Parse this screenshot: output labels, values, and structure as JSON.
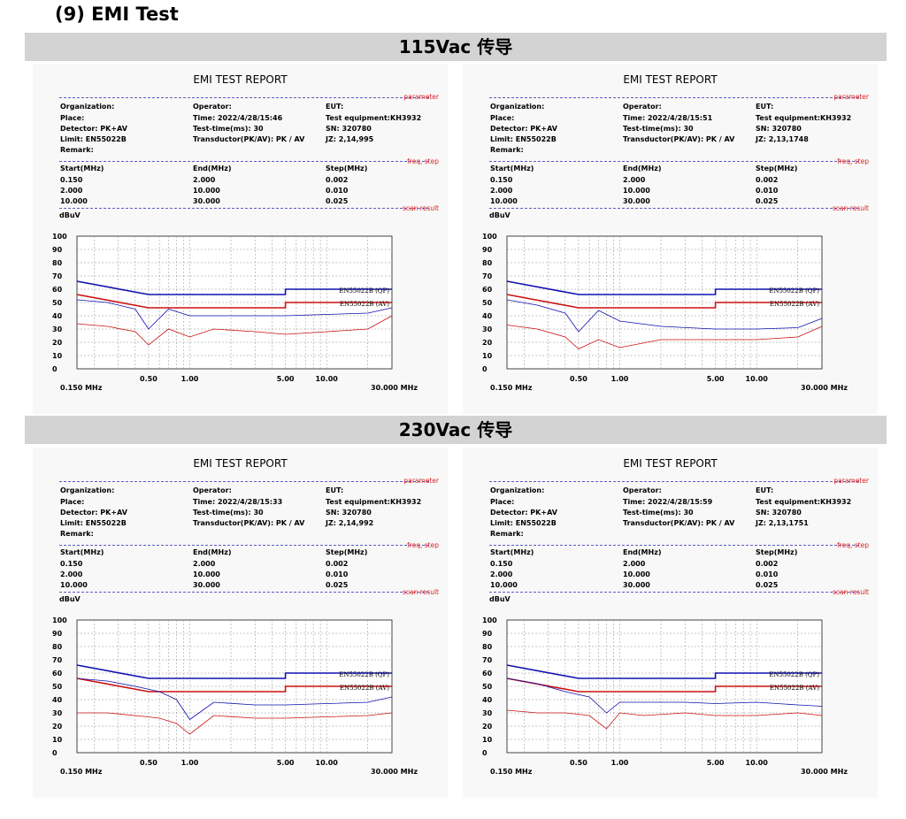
{
  "page_title": "(9) EMI Test",
  "bands": [
    "115Vac 传导",
    "230Vac 传导"
  ],
  "colors": {
    "qp": "#1010b0",
    "av": "#cc1111",
    "band": "#d3d3d3",
    "grid": "#909090"
  },
  "reports": [
    {
      "title": "EMI TEST REPORT",
      "param_label": "parameter",
      "freq_label": "freq, step",
      "scan_label": "scan result",
      "col1": [
        "Organization:",
        "Place:",
        "Detector:  PK+AV",
        "Limit:  EN55022B",
        "Remark:"
      ],
      "col2": [
        "Operator:",
        "Time:  2022/4/28/15:46",
        "Test-time(ms):  30",
        "Transductor(PK/AV): PK / AV"
      ],
      "col3": [
        "EUT:",
        "Test equipment:KH3932",
        "SN:  320780",
        "JZ:  2,14,995"
      ],
      "step_header": [
        "Start(MHz)",
        "End(MHz)",
        "Step(MHz)"
      ],
      "step_rows": [
        [
          "0.150",
          "2.000",
          "0.002"
        ],
        [
          "2.000",
          "10.000",
          "0.010"
        ],
        [
          "10.000",
          "30.000",
          "0.025"
        ]
      ],
      "unit": "dBuV",
      "freq_start": "0.150 MHz",
      "freq_end": "30.000 MHz",
      "qp_label": "EN55022B (QP)",
      "av_label": "EN55022B (AV)"
    },
    {
      "title": "EMI TEST REPORT",
      "param_label": "parameter",
      "freq_label": "freq, step",
      "scan_label": "scan result",
      "col1": [
        "Organization:",
        "Place:",
        "Detector:  PK+AV",
        "Limit:  EN55022B",
        "Remark:"
      ],
      "col2": [
        "Operator:",
        "Time:  2022/4/28/15:51",
        "Test-time(ms):  30",
        "Transductor(PK/AV): PK / AV"
      ],
      "col3": [
        "EUT:",
        "Test equipment:KH3932",
        "SN:  320780",
        "JZ:  2,13,1748"
      ],
      "step_header": [
        "Start(MHz)",
        "End(MHz)",
        "Step(MHz)"
      ],
      "step_rows": [
        [
          "0.150",
          "2.000",
          "0.002"
        ],
        [
          "2.000",
          "10.000",
          "0.010"
        ],
        [
          "10.000",
          "30.000",
          "0.025"
        ]
      ],
      "unit": "dBuV",
      "freq_start": "0.150 MHz",
      "freq_end": "30.000 MHz",
      "qp_label": "EN55022B (QP)",
      "av_label": "EN55022B (AV)"
    },
    {
      "title": "EMI TEST REPORT",
      "param_label": "parameter",
      "freq_label": "freq, step",
      "scan_label": "scan result",
      "col1": [
        "Organization:",
        "Place:",
        "Detector:  PK+AV",
        "Limit:  EN55022B",
        "Remark:"
      ],
      "col2": [
        "Operator:",
        "Time:  2022/4/28/15:33",
        "Test-time(ms):  30",
        "Transductor(PK/AV): PK / AV"
      ],
      "col3": [
        "EUT:",
        "Test equipment:KH3932",
        "SN:  320780",
        "JZ:  2,14,992"
      ],
      "step_header": [
        "Start(MHz)",
        "End(MHz)",
        "Step(MHz)"
      ],
      "step_rows": [
        [
          "0.150",
          "2.000",
          "0.002"
        ],
        [
          "2.000",
          "10.000",
          "0.010"
        ],
        [
          "10.000",
          "30.000",
          "0.025"
        ]
      ],
      "unit": "dBuV",
      "freq_start": "0.150 MHz",
      "freq_end": "30.000 MHz",
      "qp_label": "EN55022B (QP)",
      "av_label": "EN55022B (AV)"
    },
    {
      "title": "EMI TEST REPORT",
      "param_label": "parameter",
      "freq_label": "freq, step",
      "scan_label": "scan result",
      "col1": [
        "Organization:",
        "Place:",
        "Detector:  PK+AV",
        "Limit:  EN55022B",
        "Remark:"
      ],
      "col2": [
        "Operator:",
        "Time:  2022/4/28/15:59",
        "Test-time(ms):  30",
        "Transductor(PK/AV): PK / AV"
      ],
      "col3": [
        "EUT:",
        "Test equipment:KH3932",
        "SN:  320780",
        "JZ:  2,13,1751"
      ],
      "step_header": [
        "Start(MHz)",
        "End(MHz)",
        "Step(MHz)"
      ],
      "step_rows": [
        [
          "0.150",
          "2.000",
          "0.002"
        ],
        [
          "2.000",
          "10.000",
          "0.010"
        ],
        [
          "10.000",
          "30.000",
          "0.025"
        ]
      ],
      "unit": "dBuV",
      "freq_start": "0.150 MHz",
      "freq_end": "30.000 MHz",
      "qp_label": "EN55022B (QP)",
      "av_label": "EN55022B (AV)"
    }
  ],
  "chart_data": [
    {
      "type": "line",
      "x_scale": "log",
      "xlim": [
        0.15,
        30
      ],
      "ylim": [
        0,
        100
      ],
      "grid": true,
      "yticks": [
        0,
        10,
        20,
        30,
        40,
        50,
        60,
        70,
        80,
        90,
        100
      ],
      "xticks": [
        0.5,
        1,
        5,
        10
      ],
      "xtick_labels": [
        "0.50",
        "1.00",
        "5.00",
        "10.00"
      ],
      "series": [
        {
          "name": "EN55022B (QP)",
          "x": [
            0.15,
            0.5,
            0.5,
            5,
            5,
            30
          ],
          "y": [
            66,
            56,
            56,
            56,
            60,
            60
          ]
        },
        {
          "name": "EN55022B (AV)",
          "x": [
            0.15,
            0.5,
            0.5,
            5,
            5,
            30
          ],
          "y": [
            56,
            46,
            46,
            46,
            50,
            50
          ]
        },
        {
          "x": [
            0.15,
            0.25,
            0.4,
            0.5,
            0.7,
            1,
            1.5,
            3,
            5,
            10,
            20,
            30
          ],
          "y": [
            52,
            50,
            45,
            30,
            45,
            40,
            40,
            40,
            40,
            41,
            42,
            46
          ]
        },
        {
          "x": [
            0.15,
            0.25,
            0.4,
            0.5,
            0.7,
            1,
            1.5,
            3,
            5,
            10,
            20,
            30
          ],
          "y": [
            34,
            32,
            28,
            18,
            30,
            24,
            30,
            28,
            26,
            28,
            30,
            40
          ]
        }
      ]
    },
    {
      "type": "line",
      "x_scale": "log",
      "xlim": [
        0.15,
        30
      ],
      "ylim": [
        0,
        100
      ],
      "grid": true,
      "yticks": [
        0,
        10,
        20,
        30,
        40,
        50,
        60,
        70,
        80,
        90,
        100
      ],
      "xticks": [
        0.5,
        1,
        5,
        10
      ],
      "xtick_labels": [
        "0.50",
        "1.00",
        "5.00",
        "10.00"
      ],
      "series": [
        {
          "name": "EN55022B (QP)",
          "x": [
            0.15,
            0.5,
            0.5,
            5,
            5,
            30
          ],
          "y": [
            66,
            56,
            56,
            56,
            60,
            60
          ]
        },
        {
          "name": "EN55022B (AV)",
          "x": [
            0.15,
            0.5,
            0.5,
            5,
            5,
            30
          ],
          "y": [
            56,
            46,
            46,
            46,
            50,
            50
          ]
        },
        {
          "x": [
            0.15,
            0.25,
            0.4,
            0.5,
            0.7,
            1,
            2,
            5,
            10,
            20,
            30
          ],
          "y": [
            52,
            48,
            42,
            28,
            44,
            36,
            32,
            30,
            30,
            31,
            38
          ]
        },
        {
          "x": [
            0.15,
            0.25,
            0.4,
            0.5,
            0.7,
            1,
            2,
            5,
            10,
            20,
            30
          ],
          "y": [
            33,
            30,
            24,
            15,
            22,
            16,
            22,
            22,
            22,
            24,
            32
          ]
        }
      ]
    },
    {
      "type": "line",
      "x_scale": "log",
      "xlim": [
        0.15,
        30
      ],
      "ylim": [
        0,
        100
      ],
      "grid": true,
      "yticks": [
        0,
        10,
        20,
        30,
        40,
        50,
        60,
        70,
        80,
        90,
        100
      ],
      "xticks": [
        0.5,
        1,
        5,
        10
      ],
      "xtick_labels": [
        "0.50",
        "1.00",
        "5.00",
        "10.00"
      ],
      "series": [
        {
          "name": "EN55022B (QP)",
          "x": [
            0.15,
            0.5,
            0.5,
            5,
            5,
            30
          ],
          "y": [
            66,
            56,
            56,
            56,
            60,
            60
          ]
        },
        {
          "name": "EN55022B (AV)",
          "x": [
            0.15,
            0.5,
            0.5,
            5,
            5,
            30
          ],
          "y": [
            56,
            46,
            46,
            46,
            50,
            50
          ]
        },
        {
          "x": [
            0.15,
            0.25,
            0.4,
            0.6,
            0.8,
            1,
            1.5,
            3,
            5,
            10,
            20,
            30
          ],
          "y": [
            56,
            54,
            50,
            46,
            40,
            25,
            38,
            36,
            36,
            37,
            38,
            42
          ]
        },
        {
          "x": [
            0.15,
            0.25,
            0.4,
            0.6,
            0.8,
            1,
            1.5,
            3,
            5,
            10,
            20,
            30
          ],
          "y": [
            30,
            30,
            28,
            26,
            22,
            14,
            28,
            26,
            26,
            27,
            28,
            30
          ]
        }
      ]
    },
    {
      "type": "line",
      "x_scale": "log",
      "xlim": [
        0.15,
        30
      ],
      "ylim": [
        0,
        100
      ],
      "grid": true,
      "yticks": [
        0,
        10,
        20,
        30,
        40,
        50,
        60,
        70,
        80,
        90,
        100
      ],
      "xticks": [
        0.5,
        1,
        5,
        10
      ],
      "xtick_labels": [
        "0.50",
        "1.00",
        "5.00",
        "10.00"
      ],
      "series": [
        {
          "name": "EN55022B (QP)",
          "x": [
            0.15,
            0.5,
            0.5,
            5,
            5,
            30
          ],
          "y": [
            66,
            56,
            56,
            56,
            60,
            60
          ]
        },
        {
          "name": "EN55022B (AV)",
          "x": [
            0.15,
            0.5,
            0.5,
            5,
            5,
            30
          ],
          "y": [
            56,
            46,
            46,
            46,
            50,
            50
          ]
        },
        {
          "x": [
            0.15,
            0.25,
            0.4,
            0.6,
            0.8,
            1,
            1.5,
            3,
            5,
            10,
            20,
            30
          ],
          "y": [
            56,
            52,
            46,
            42,
            30,
            38,
            38,
            38,
            37,
            38,
            36,
            35
          ]
        },
        {
          "x": [
            0.15,
            0.25,
            0.4,
            0.6,
            0.8,
            1,
            1.5,
            3,
            5,
            10,
            20,
            30
          ],
          "y": [
            32,
            30,
            30,
            28,
            18,
            30,
            28,
            30,
            28,
            28,
            30,
            28
          ]
        }
      ]
    }
  ]
}
